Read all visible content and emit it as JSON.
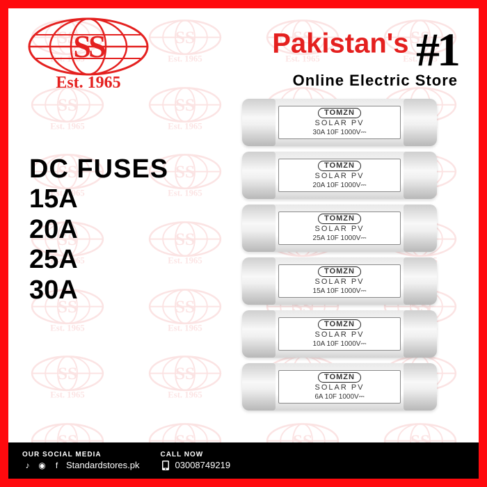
{
  "colors": {
    "frame": "#ff0a0e",
    "brand_red": "#e4201f",
    "footer_bg": "#000000",
    "text_black": "#000000",
    "headline_red": "#e4201f"
  },
  "logo": {
    "est_text": "Est. 1965",
    "ss": "SS"
  },
  "headline": {
    "line1": "Pakistan's",
    "hash": "#1",
    "line2": "Online Electric Store"
  },
  "product": {
    "title": "DC FUSES",
    "ratings": [
      "15A",
      "20A",
      "25A",
      "30A"
    ]
  },
  "fuses": [
    {
      "brand": "TOMZN",
      "solar": "SOLAR  PV",
      "spec": "30A 10F  1000V⎓"
    },
    {
      "brand": "TOMZN",
      "solar": "SOLAR  PV",
      "spec": "20A 10F  1000V⎓"
    },
    {
      "brand": "TOMZN",
      "solar": "SOLAR  PV",
      "spec": "25A 10F  1000V⎓"
    },
    {
      "brand": "TOMZN",
      "solar": "SOLAR  PV",
      "spec": "15A 10F  1000V⎓"
    },
    {
      "brand": "TOMZN",
      "solar": "SOLAR  PV",
      "spec": "10A 10F  1000V⎓"
    },
    {
      "brand": "TOMZN",
      "solar": "SOLAR  PV",
      "spec": "6A 10F  1000V⎓"
    }
  ],
  "footer": {
    "social_hdr": "OUR SOCIAL MEDIA",
    "social_handle": "Standardstores.pk",
    "call_hdr": "CALL NOW",
    "phone": "03008749219"
  }
}
